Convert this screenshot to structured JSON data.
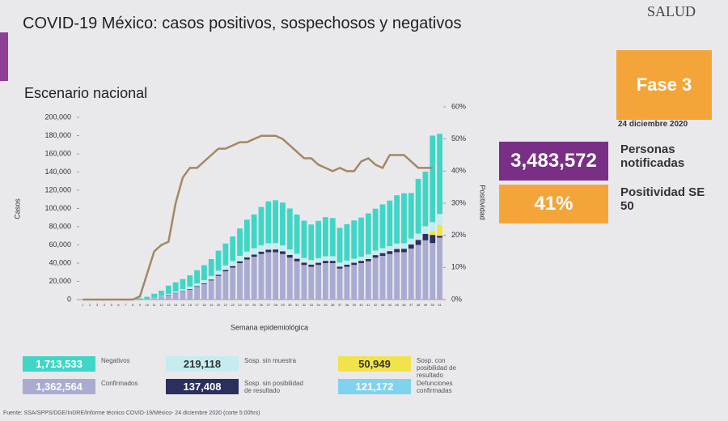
{
  "slide": {
    "title": "COVID-19 México: casos positivos, sospechosos y negativos",
    "subtitle": "Escenario nacional",
    "logo": "SALUD",
    "phase": "Fase 3",
    "date": "24 diciembre 2020",
    "notified_value": "3,483,572",
    "notified_label": "Personas notificadas",
    "positivity_value": "41%",
    "positivity_label": "Positividad SE 50",
    "deaths": {
      "value": "121,172",
      "label": "Defunciones confirmadas",
      "color": "#7fd3ee"
    },
    "source": "Fuente: SSA/SPPS/DGE/InDRE/Informe técnico COVID-19/México- 24 diciembre 2020 (corte 5:00hrs)"
  },
  "chart_data": {
    "type": "bar",
    "stacked": true,
    "y_label": "Casos",
    "y2_label": "Positividad",
    "x_label": "Semana epidemiológica",
    "categories": [
      "1",
      "2",
      "3",
      "4",
      "5",
      "6",
      "7",
      "8",
      "9",
      "10",
      "11",
      "12",
      "13",
      "14",
      "15",
      "16",
      "17",
      "18",
      "19",
      "20",
      "21",
      "22",
      "23",
      "24",
      "25",
      "26",
      "27",
      "28",
      "29",
      "30",
      "31",
      "32",
      "33",
      "34",
      "35",
      "36",
      "37",
      "38",
      "39",
      "40",
      "41",
      "42",
      "43",
      "44",
      "45",
      "46",
      "47",
      "48",
      "49",
      "50",
      "51"
    ],
    "series": [
      {
        "name": "Confirmados",
        "color": "#a9abd1",
        "total": {
          "value": 1362564,
          "label": "1,362,564"
        },
        "values": [
          0,
          0,
          0,
          0,
          0,
          0,
          0,
          0,
          100,
          500,
          1500,
          3000,
          5000,
          7000,
          9000,
          11000,
          14000,
          17000,
          21000,
          26000,
          31000,
          35000,
          40000,
          44000,
          47000,
          50000,
          52000,
          52000,
          50000,
          46000,
          42000,
          38000,
          36000,
          38000,
          40000,
          40000,
          34000,
          36000,
          38000,
          40000,
          42000,
          46000,
          48000,
          50000,
          52000,
          52000,
          56000,
          60000,
          65000,
          62000,
          68000
        ]
      },
      {
        "name": "Sosp. sin posibilidad de resultado",
        "color": "#2a2f5e",
        "total": {
          "value": 137408,
          "label": "137,408"
        },
        "values": [
          0,
          0,
          0,
          0,
          0,
          0,
          0,
          0,
          0,
          0,
          100,
          200,
          300,
          400,
          500,
          600,
          700,
          800,
          1000,
          1200,
          1500,
          1800,
          2000,
          2200,
          2400,
          2600,
          2800,
          3000,
          3000,
          3000,
          2800,
          2600,
          2400,
          2400,
          2500,
          2500,
          2200,
          2300,
          2400,
          2500,
          2600,
          2800,
          3000,
          3200,
          3500,
          3800,
          4500,
          5500,
          7000,
          9000,
          2000
        ]
      },
      {
        "name": "Sosp. con posibilidad de resultado",
        "color": "#f2e34a",
        "total": {
          "value": 50949,
          "label": "50,949"
        },
        "values": [
          0,
          0,
          0,
          0,
          0,
          0,
          0,
          0,
          0,
          0,
          0,
          0,
          0,
          0,
          0,
          0,
          0,
          0,
          0,
          0,
          0,
          0,
          0,
          0,
          0,
          0,
          0,
          0,
          0,
          0,
          0,
          0,
          0,
          0,
          0,
          0,
          0,
          0,
          0,
          0,
          0,
          0,
          0,
          0,
          0,
          0,
          0,
          0,
          500,
          4000,
          12000
        ]
      },
      {
        "name": "Sosp. sin muestra",
        "color": "#c5ecef",
        "total": {
          "value": 219118,
          "label": "219,118"
        },
        "values": [
          0,
          0,
          0,
          0,
          0,
          0,
          0,
          0,
          0,
          100,
          300,
          600,
          1000,
          1500,
          2000,
          2500,
          3000,
          3500,
          4000,
          4500,
          5000,
          5500,
          6000,
          6500,
          7000,
          7000,
          7000,
          7000,
          6500,
          6000,
          5500,
          5000,
          5000,
          5000,
          5000,
          5000,
          4500,
          4500,
          4500,
          4500,
          5000,
          5000,
          5500,
          5500,
          6000,
          6000,
          6500,
          7000,
          8000,
          10000,
          12000
        ]
      },
      {
        "name": "Negativos",
        "color": "#3fd6c6",
        "total": {
          "value": 1713533,
          "label": "1,713,533"
        },
        "values": [
          100,
          100,
          200,
          200,
          300,
          300,
          500,
          800,
          1300,
          2500,
          4500,
          6000,
          9000,
          10000,
          11000,
          12500,
          14500,
          16500,
          18500,
          22000,
          24000,
          27000,
          30000,
          35000,
          37000,
          42000,
          46000,
          47000,
          47000,
          45000,
          43000,
          41000,
          39000,
          41000,
          43000,
          42000,
          38000,
          40000,
          42000,
          43000,
          45000,
          46000,
          48000,
          50000,
          53000,
          55000,
          50000,
          60000,
          60000,
          95000,
          88000
        ]
      },
      {
        "name": "Positividad",
        "type": "line",
        "axis": "y2",
        "color": "#a58763",
        "values": [
          0,
          0,
          0,
          0,
          0,
          0,
          0,
          0,
          1,
          8,
          15,
          17,
          18,
          30,
          38,
          41,
          41,
          43,
          45,
          47,
          47,
          48,
          49,
          49,
          50,
          51,
          51,
          51,
          50,
          48,
          46,
          44,
          44,
          42,
          41,
          40,
          41,
          40,
          40,
          43,
          44,
          42,
          41,
          45,
          45,
          45,
          43,
          41,
          41,
          41,
          null
        ]
      }
    ],
    "ylim": [
      0,
      200000
    ],
    "yticks": [
      0,
      {
        "value": 20000,
        "label": "20,000"
      },
      {
        "value": 40000,
        "label": "40,000"
      },
      {
        "value": 60000,
        "label": "60,000"
      },
      {
        "value": 80000,
        "label": "80,000"
      },
      {
        "value": 100000,
        "label": "100,000"
      },
      {
        "value": 120000,
        "label": "120,000"
      },
      {
        "value": 140000,
        "label": "140,000"
      },
      {
        "value": 160000,
        "label": "160,000"
      },
      {
        "value": 180000,
        "label": "180,000"
      },
      {
        "value": 200000,
        "label": "200,000"
      }
    ],
    "y2lim": [
      0,
      60
    ],
    "y2ticks": [
      {
        "value": 0,
        "label": "0%"
      },
      {
        "value": 10,
        "label": "10%"
      },
      {
        "value": 20,
        "label": "20%"
      },
      {
        "value": 30,
        "label": "30%"
      },
      {
        "value": 40,
        "label": "40%"
      },
      {
        "value": 50,
        "label": "50%"
      },
      {
        "value": 60,
        "label": "60%"
      }
    ],
    "grid": false
  }
}
